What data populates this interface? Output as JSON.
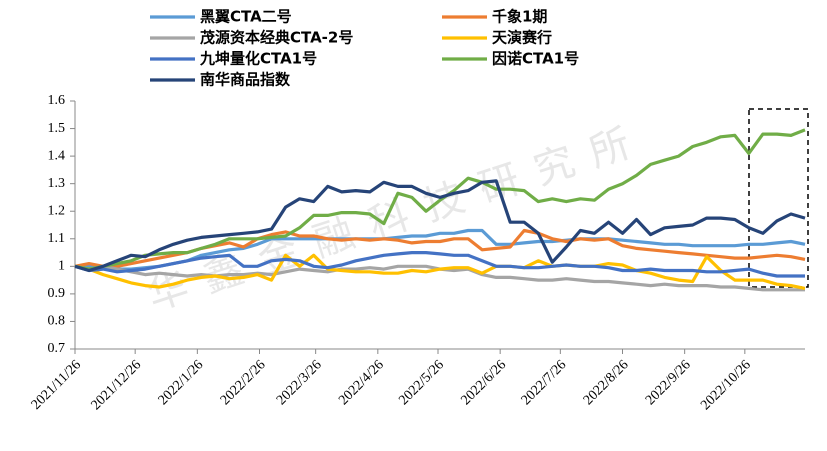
{
  "chart_data": {
    "type": "line",
    "watermark": "华鑫金融科技研究所",
    "x": [
      "2021/11/26",
      "2021/12/3",
      "2021/12/10",
      "2021/12/17",
      "2021/12/24",
      "2021/12/31",
      "2022/1/7",
      "2022/1/14",
      "2022/1/21",
      "2022/1/28",
      "2022/2/4",
      "2022/2/11",
      "2022/2/18",
      "2022/2/25",
      "2022/3/4",
      "2022/3/11",
      "2022/3/18",
      "2022/3/25",
      "2022/4/1",
      "2022/4/8",
      "2022/4/15",
      "2022/4/22",
      "2022/4/29",
      "2022/5/6",
      "2022/5/13",
      "2022/5/20",
      "2022/5/27",
      "2022/6/3",
      "2022/6/10",
      "2022/6/17",
      "2022/6/24",
      "2022/7/1",
      "2022/7/8",
      "2022/7/15",
      "2022/7/22",
      "2022/7/29",
      "2022/8/5",
      "2022/8/12",
      "2022/8/19",
      "2022/8/26",
      "2022/9/2",
      "2022/9/9",
      "2022/9/16",
      "2022/9/23",
      "2022/9/30",
      "2022/10/7",
      "2022/10/14",
      "2022/10/21",
      "2022/10/28",
      "2022/11/4",
      "2022/11/11",
      "2022/11/18",
      "2022/11/25"
    ],
    "xlim": [
      "2021/11/26",
      "2022/11/25"
    ],
    "xticks": [
      "2021/11/26",
      "2021/12/26",
      "2022/1/26",
      "2022/2/26",
      "2022/3/26",
      "2022/4/26",
      "2022/5/26",
      "2022/6/26",
      "2022/7/26",
      "2022/8/26",
      "2022/9/26",
      "2022/10/26"
    ],
    "ylim": [
      0.7,
      1.6
    ],
    "yticks": [
      0.7,
      0.8,
      0.9,
      1,
      1.1,
      1.2,
      1.3,
      1.4,
      1.5,
      1.6
    ],
    "grid": false,
    "series": [
      {
        "name": "黑翼CTA二号",
        "color": "#5B9BD5",
        "values": [
          1.0,
          1.0,
          1.0,
          0.99,
          0.99,
          0.995,
          1.0,
          1.01,
          1.02,
          1.04,
          1.05,
          1.06,
          1.065,
          1.08,
          1.1,
          1.1,
          1.1,
          1.1,
          1.1,
          1.1,
          1.1,
          1.1,
          1.1,
          1.105,
          1.11,
          1.11,
          1.12,
          1.12,
          1.13,
          1.13,
          1.08,
          1.08,
          1.085,
          1.09,
          1.09,
          1.095,
          1.1,
          1.1,
          1.1,
          1.095,
          1.09,
          1.085,
          1.08,
          1.08,
          1.075,
          1.075,
          1.075,
          1.075,
          1.08,
          1.08,
          1.085,
          1.09,
          1.08
        ]
      },
      {
        "name": "千象1期",
        "color": "#ED7D31",
        "values": [
          1.0,
          1.01,
          1.0,
          1.0,
          1.01,
          1.02,
          1.03,
          1.04,
          1.05,
          1.065,
          1.075,
          1.085,
          1.07,
          1.1,
          1.115,
          1.125,
          1.11,
          1.11,
          1.1,
          1.095,
          1.1,
          1.095,
          1.1,
          1.095,
          1.085,
          1.09,
          1.09,
          1.1,
          1.1,
          1.06,
          1.065,
          1.07,
          1.13,
          1.12,
          1.1,
          1.09,
          1.1,
          1.095,
          1.1,
          1.075,
          1.065,
          1.06,
          1.055,
          1.05,
          1.045,
          1.04,
          1.035,
          1.03,
          1.03,
          1.035,
          1.04,
          1.035,
          1.025
        ]
      },
      {
        "name": "茂源资本经典CTA-2号",
        "color": "#A5A5A5",
        "values": [
          1.0,
          0.99,
          1.0,
          0.99,
          0.98,
          0.97,
          0.975,
          0.97,
          0.965,
          0.97,
          0.965,
          0.97,
          0.97,
          0.975,
          0.97,
          0.98,
          0.99,
          0.985,
          0.98,
          0.99,
          0.99,
          0.995,
          0.99,
          1.0,
          1.0,
          1.0,
          0.99,
          0.985,
          0.99,
          0.97,
          0.96,
          0.96,
          0.955,
          0.95,
          0.95,
          0.955,
          0.95,
          0.945,
          0.945,
          0.94,
          0.935,
          0.93,
          0.935,
          0.93,
          0.93,
          0.93,
          0.925,
          0.925,
          0.92,
          0.915,
          0.915,
          0.915,
          0.915
        ]
      },
      {
        "name": "天演赛行",
        "color": "#FFC000",
        "values": [
          1.0,
          0.99,
          0.97,
          0.955,
          0.94,
          0.93,
          0.925,
          0.935,
          0.95,
          0.96,
          0.965,
          0.955,
          0.96,
          0.97,
          0.95,
          1.04,
          1.0,
          1.04,
          0.99,
          0.985,
          0.98,
          0.98,
          0.975,
          0.975,
          0.985,
          0.98,
          0.99,
          0.995,
          0.995,
          0.975,
          1.0,
          1.0,
          0.995,
          1.02,
          1.0,
          1.005,
          1.0,
          1.0,
          1.01,
          1.005,
          0.985,
          0.975,
          0.96,
          0.95,
          0.945,
          1.035,
          0.985,
          0.95,
          0.95,
          0.95,
          0.935,
          0.93,
          0.92
        ]
      },
      {
        "name": "九坤量化CTA1号",
        "color": "#4472C4",
        "values": [
          1.0,
          0.985,
          0.99,
          0.98,
          0.985,
          0.99,
          1.0,
          1.01,
          1.02,
          1.03,
          1.035,
          1.04,
          1.0,
          1.0,
          1.02,
          1.025,
          1.02,
          1.0,
          0.995,
          1.005,
          1.02,
          1.03,
          1.04,
          1.045,
          1.05,
          1.05,
          1.045,
          1.04,
          1.04,
          1.02,
          1.0,
          1.0,
          0.995,
          0.995,
          1.0,
          1.005,
          1.0,
          1.0,
          0.995,
          0.985,
          0.985,
          0.99,
          0.985,
          0.985,
          0.985,
          0.98,
          0.98,
          0.985,
          0.99,
          0.975,
          0.965,
          0.965,
          0.965
        ]
      },
      {
        "name": "因诺CTA1号",
        "color": "#70AD47",
        "values": [
          1.0,
          0.99,
          1.0,
          1.01,
          1.02,
          1.04,
          1.045,
          1.05,
          1.05,
          1.065,
          1.08,
          1.1,
          1.1,
          1.1,
          1.105,
          1.11,
          1.14,
          1.185,
          1.185,
          1.195,
          1.195,
          1.19,
          1.155,
          1.265,
          1.25,
          1.2,
          1.24,
          1.275,
          1.32,
          1.305,
          1.28,
          1.28,
          1.275,
          1.235,
          1.245,
          1.235,
          1.245,
          1.24,
          1.28,
          1.3,
          1.33,
          1.37,
          1.385,
          1.4,
          1.435,
          1.45,
          1.47,
          1.475,
          1.41,
          1.48,
          1.48,
          1.475,
          1.495
        ]
      },
      {
        "name": "南华商品指数",
        "color": "#264478",
        "values": [
          1.0,
          0.985,
          1.0,
          1.02,
          1.04,
          1.035,
          1.06,
          1.08,
          1.095,
          1.105,
          1.11,
          1.115,
          1.12,
          1.125,
          1.135,
          1.215,
          1.245,
          1.235,
          1.29,
          1.27,
          1.275,
          1.27,
          1.305,
          1.29,
          1.29,
          1.265,
          1.25,
          1.265,
          1.275,
          1.305,
          1.31,
          1.16,
          1.16,
          1.12,
          1.015,
          1.07,
          1.13,
          1.12,
          1.16,
          1.12,
          1.17,
          1.115,
          1.14,
          1.145,
          1.15,
          1.175,
          1.175,
          1.17,
          1.14,
          1.12,
          1.165,
          1.19,
          1.175
        ]
      }
    ]
  }
}
